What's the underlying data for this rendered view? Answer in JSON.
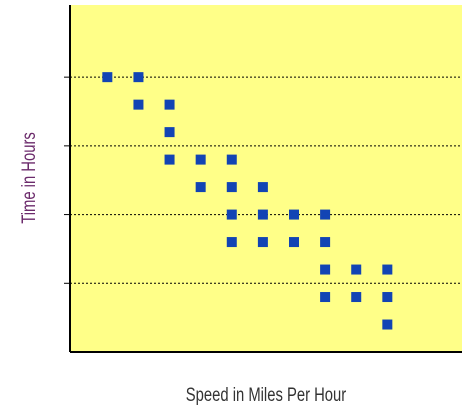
{
  "chart_data": {
    "type": "scatter",
    "x_label": "Speed in Miles Per Hour",
    "y_label": "Time in Hours",
    "x": [
      1,
      2,
      2,
      3,
      3,
      3,
      4,
      4,
      5,
      5,
      5,
      5,
      6,
      6,
      6,
      7,
      7,
      8,
      8,
      8,
      8,
      9,
      9,
      10,
      10,
      10
    ],
    "y": [
      4.0,
      4.0,
      3.6,
      3.6,
      3.2,
      2.8,
      2.8,
      2.4,
      2.8,
      2.4,
      2.0,
      1.6,
      2.4,
      2.0,
      1.6,
      2.0,
      1.6,
      2.0,
      1.6,
      1.2,
      0.8,
      1.2,
      0.8,
      1.2,
      0.8,
      0.4
    ],
    "color": "#1244b4",
    "background": "#ffff88",
    "xlim": [
      -0.2,
      12.4
    ],
    "ylim": [
      0,
      5.05
    ],
    "yticks": [
      1,
      2,
      3,
      4
    ],
    "grid": true
  }
}
